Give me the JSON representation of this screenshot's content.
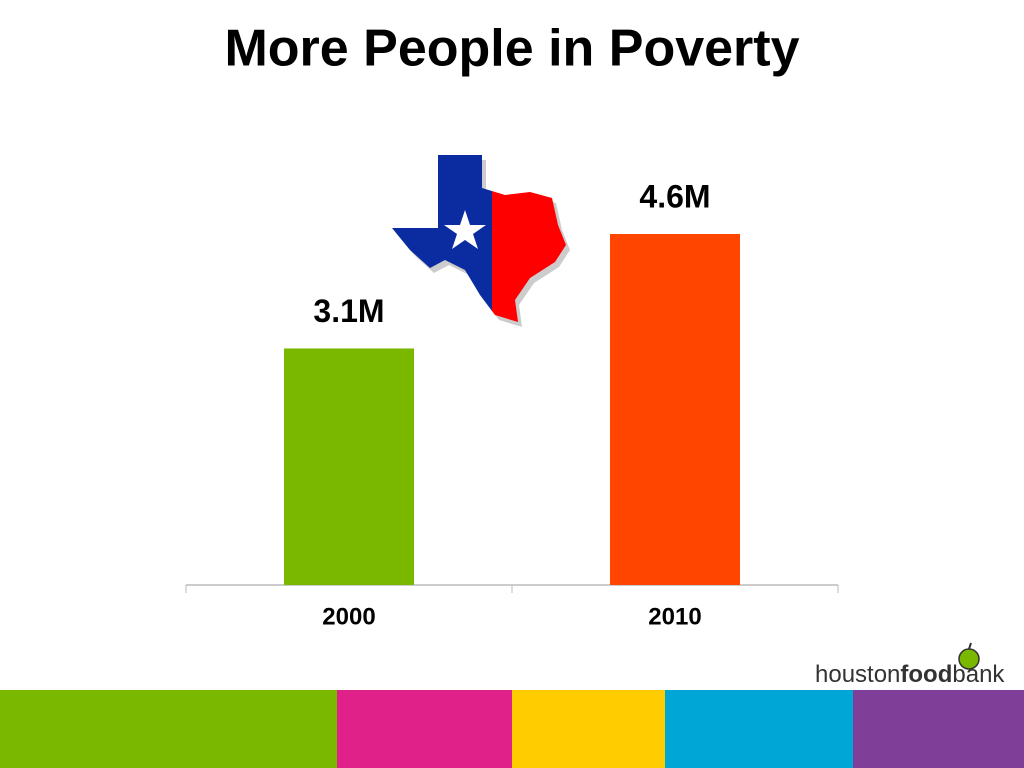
{
  "chart_data": {
    "type": "bar",
    "title": "More People in Poverty",
    "categories": [
      "2000",
      "2010"
    ],
    "values": [
      3.1,
      4.6
    ],
    "value_labels": [
      "3.1M",
      "4.6M"
    ],
    "colors": [
      "#7ab800",
      "#ff4500"
    ]
  },
  "logo": {
    "parts": [
      "houston",
      "food",
      "bank"
    ]
  }
}
